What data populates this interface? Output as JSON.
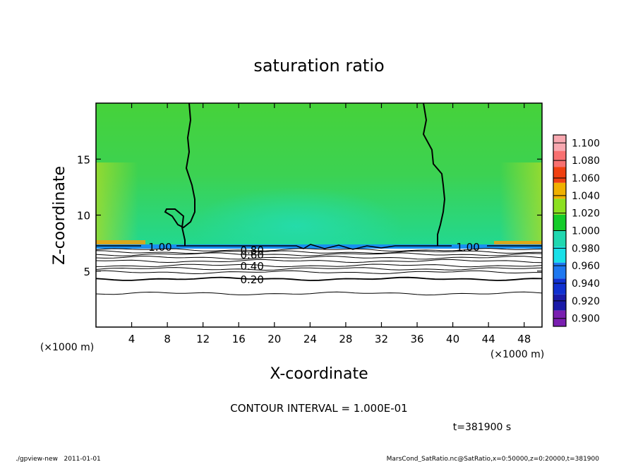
{
  "chart_data": {
    "type": "heatmap",
    "title": "saturation ratio",
    "xlabel": "X-coordinate",
    "ylabel": "Z-coordinate",
    "x_unit_label": "(×1000 m)",
    "y_unit_label": "(×1000 m)",
    "xlim": [
      0,
      50
    ],
    "ylim": [
      0,
      20
    ],
    "x_ticks": [
      4,
      8,
      12,
      16,
      20,
      24,
      28,
      32,
      36,
      40,
      44,
      48
    ],
    "y_ticks": [
      5,
      10,
      15
    ],
    "colorbar": {
      "levels": [
        0.9,
        0.92,
        0.94,
        0.96,
        0.98,
        1.0,
        1.02,
        1.04,
        1.06,
        1.08,
        1.1
      ],
      "labels": [
        "0.900",
        "0.920",
        "0.940",
        "0.960",
        "0.980",
        "1.000",
        "1.020",
        "1.040",
        "1.060",
        "1.080",
        "1.100"
      ],
      "colors": [
        "#7a1fb0",
        "#1a1aa8",
        "#1030d0",
        "#1e78f0",
        "#18e0e8",
        "#20d8b0",
        "#14cc2a",
        "#8ce020",
        "#f0b000",
        "#f04010",
        "#f87070",
        "#f8a8b0"
      ]
    },
    "contour_labels": [
      {
        "text": "1.00",
        "x": 7.2,
        "z": 7.2
      },
      {
        "text": "1.00",
        "x": 41.7,
        "z": 7.2
      },
      {
        "text": "0.80",
        "x": 17.5,
        "z": 6.9
      },
      {
        "text": "0.60",
        "x": 17.5,
        "z": 6.5
      },
      {
        "text": "0.40",
        "x": 17.5,
        "z": 5.5
      },
      {
        "text": "0.20",
        "x": 17.5,
        "z": 4.3
      }
    ],
    "footer": {
      "contour_interval": "CONTOUR INTERVAL = 1.000E-01",
      "time": "t=381900 s",
      "left_note": "./gpview-new   2011-01-01",
      "right_note": "MarsCond_SatRatio.nc@SatRatio,x=0:50000,z=0:20000,t=381900"
    }
  }
}
